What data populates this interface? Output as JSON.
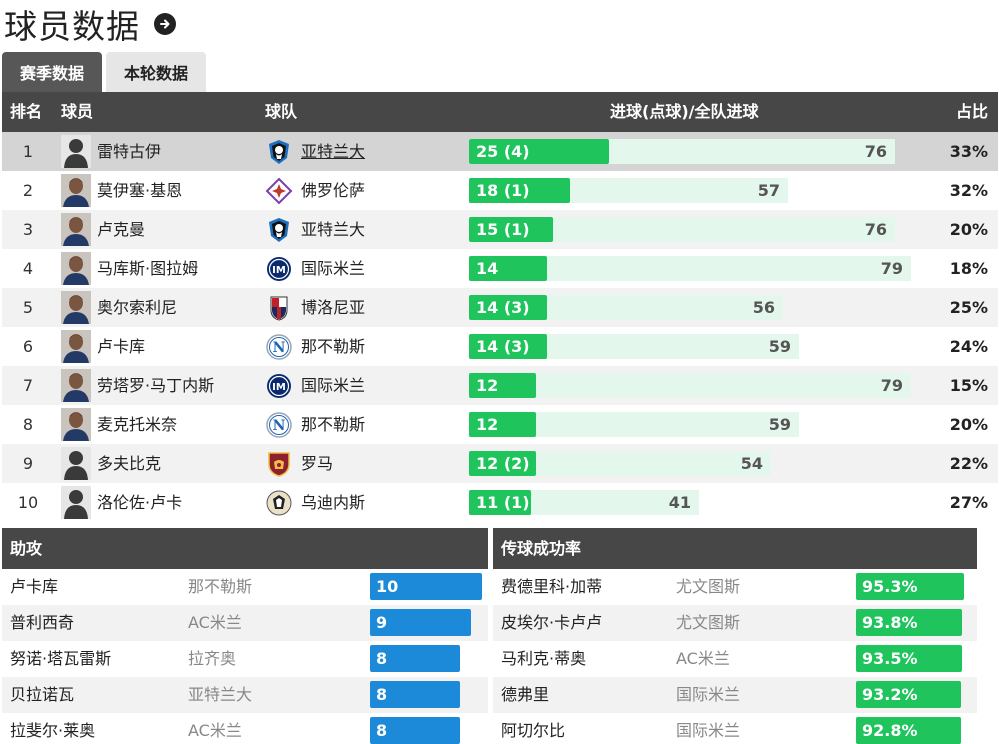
{
  "header": {
    "title": "球员数据"
  },
  "tabs": [
    {
      "label": "赛季数据",
      "active": true
    },
    {
      "label": "本轮数据",
      "active": false
    }
  ],
  "columns": {
    "rank": "排名",
    "player": "球员",
    "team": "球队",
    "goals": "进球(点球)/全队进球",
    "share": "占比"
  },
  "rows": [
    {
      "rank": "1",
      "player": "雷特古伊",
      "team": "亚特兰大",
      "badge": "atalanta-badge",
      "goals": "25 (4)",
      "goals_value": 25,
      "team_goals": "76",
      "team_goals_value": 76,
      "share": "33%",
      "avatar": "silhouette"
    },
    {
      "rank": "2",
      "player": "莫伊塞·基恩",
      "team": "佛罗伦萨",
      "badge": "fiorentina-badge",
      "goals": "18 (1)",
      "goals_value": 18,
      "team_goals": "57",
      "team_goals_value": 57,
      "share": "32%",
      "avatar": "photo"
    },
    {
      "rank": "3",
      "player": "卢克曼",
      "team": "亚特兰大",
      "badge": "atalanta-badge",
      "goals": "15 (1)",
      "goals_value": 15,
      "team_goals": "76",
      "team_goals_value": 76,
      "share": "20%",
      "avatar": "photo"
    },
    {
      "rank": "4",
      "player": "马库斯·图拉姆",
      "team": "国际米兰",
      "badge": "inter-badge",
      "goals": "14",
      "goals_value": 14,
      "team_goals": "79",
      "team_goals_value": 79,
      "share": "18%",
      "avatar": "photo"
    },
    {
      "rank": "5",
      "player": "奥尔索利尼",
      "team": "博洛尼亚",
      "badge": "bologna-badge",
      "goals": "14 (3)",
      "goals_value": 14,
      "team_goals": "56",
      "team_goals_value": 56,
      "share": "25%",
      "avatar": "photo"
    },
    {
      "rank": "6",
      "player": "卢卡库",
      "team": "那不勒斯",
      "badge": "napoli-badge",
      "goals": "14 (3)",
      "goals_value": 14,
      "team_goals": "59",
      "team_goals_value": 59,
      "share": "24%",
      "avatar": "photo"
    },
    {
      "rank": "7",
      "player": "劳塔罗·马丁内斯",
      "team": "国际米兰",
      "badge": "inter-badge",
      "goals": "12",
      "goals_value": 12,
      "team_goals": "79",
      "team_goals_value": 79,
      "share": "15%",
      "avatar": "photo"
    },
    {
      "rank": "8",
      "player": "麦克托米奈",
      "team": "那不勒斯",
      "badge": "napoli-badge",
      "goals": "12",
      "goals_value": 12,
      "team_goals": "59",
      "team_goals_value": 59,
      "share": "20%",
      "avatar": "photo"
    },
    {
      "rank": "9",
      "player": "多夫比克",
      "team": "罗马",
      "badge": "roma-badge",
      "goals": "12 (2)",
      "goals_value": 12,
      "team_goals": "54",
      "team_goals_value": 54,
      "share": "22%",
      "avatar": "silhouette"
    },
    {
      "rank": "10",
      "player": "洛伦佐·卢卡",
      "team": "乌迪内斯",
      "badge": "udinese-badge",
      "goals": "11 (1)",
      "goals_value": 11,
      "team_goals": "41",
      "team_goals_value": 41,
      "share": "27%",
      "avatar": "silhouette"
    }
  ],
  "assists": {
    "title": "助攻",
    "color": "#1c8ad8",
    "max": 10,
    "rows": [
      {
        "player": "卢卡库",
        "team": "那不勒斯",
        "value": "10",
        "num": 10
      },
      {
        "player": "普利西奇",
        "team": "AC米兰",
        "value": "9",
        "num": 9
      },
      {
        "player": "努诺·塔瓦雷斯",
        "team": "拉齐奥",
        "value": "8",
        "num": 8
      },
      {
        "player": "贝拉诺瓦",
        "team": "亚特兰大",
        "value": "8",
        "num": 8
      },
      {
        "player": "拉斐尔·莱奥",
        "team": "AC米兰",
        "value": "8",
        "num": 8
      }
    ]
  },
  "passing": {
    "title": "传球成功率",
    "color": "#1fc45d",
    "rows": [
      {
        "player": "费德里科·加蒂",
        "team": "尤文图斯",
        "value": "95.3%",
        "num": 95.3
      },
      {
        "player": "皮埃尔·卡卢卢",
        "team": "尤文图斯",
        "value": "93.8%",
        "num": 93.8
      },
      {
        "player": "马利克·蒂奥",
        "team": "AC米兰",
        "value": "93.5%",
        "num": 93.5
      },
      {
        "player": "德弗里",
        "team": "国际米兰",
        "value": "93.2%",
        "num": 93.2
      },
      {
        "player": "阿切尔比",
        "team": "国际米兰",
        "value": "92.8%",
        "num": 92.8
      }
    ]
  },
  "colors": {
    "goal_bar": "#1fc45d",
    "goal_track": "#e3f7ec",
    "header_bg": "#474747"
  }
}
